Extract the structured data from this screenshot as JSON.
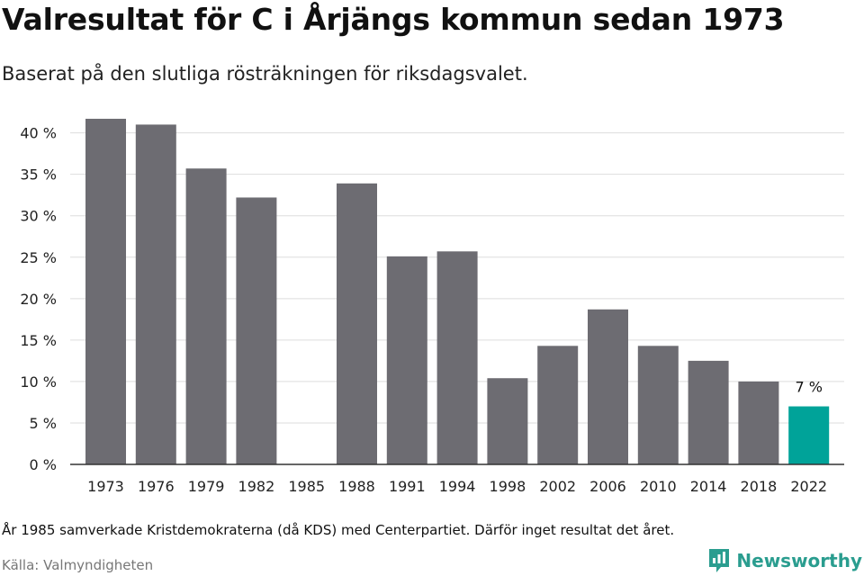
{
  "header": {
    "title": "Valresultat för C i Årjängs kommun sedan 1973",
    "subtitle": "Baserat på den slutliga rösträkningen för riksdagsvalet."
  },
  "footer": {
    "footnote": "År 1985 samverkade Kristdemokraterna (då KDS) med Centerpartiet. Därför inget resultat det året.",
    "source": "Källa: Valmyndigheten",
    "brand": "Newsworthy",
    "brand_icon": "newsworthy-logo-icon"
  },
  "colors": {
    "bar": "#6d6c72",
    "highlight": "#00a399",
    "grid": "#dddddd",
    "axis": "#333333",
    "brand": "#2a9d8f"
  },
  "chart_data": {
    "type": "bar",
    "title": "Valresultat för C i Årjängs kommun sedan 1973",
    "subtitle": "Baserat på den slutliga rösträkningen för riksdagsvalet.",
    "categories": [
      "1973",
      "1976",
      "1979",
      "1982",
      "1985",
      "1988",
      "1991",
      "1994",
      "1998",
      "2002",
      "2006",
      "2010",
      "2014",
      "2018",
      "2022"
    ],
    "values": [
      41.7,
      41.0,
      35.7,
      32.2,
      null,
      33.9,
      25.1,
      25.7,
      10.4,
      14.3,
      18.7,
      14.3,
      12.5,
      10.0,
      7.0
    ],
    "highlight_index": 14,
    "data_labels": [
      {
        "index": 14,
        "text": "7 %"
      }
    ],
    "y_ticks": [
      0,
      5,
      10,
      15,
      20,
      25,
      30,
      35,
      40
    ],
    "y_tick_labels": [
      "0 %",
      "5 %",
      "10 %",
      "15 %",
      "20 %",
      "25 %",
      "30 %",
      "35 %",
      "40 %"
    ],
    "ylim": [
      0,
      43
    ],
    "xlabel": "",
    "ylabel": "",
    "grid": true,
    "legend": "none"
  }
}
